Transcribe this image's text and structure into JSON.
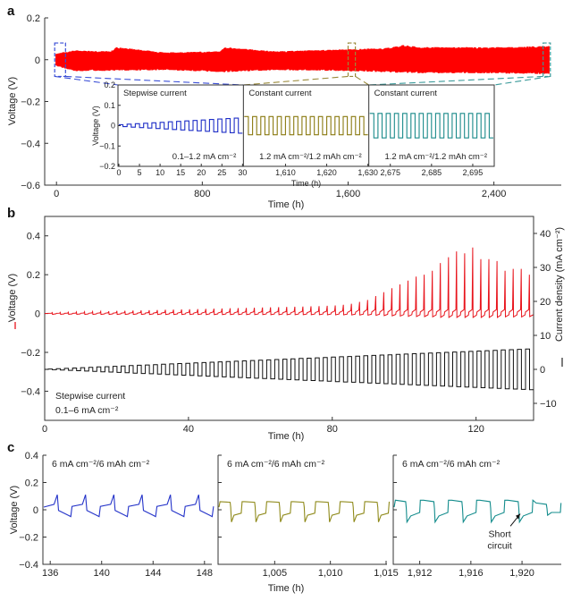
{
  "figure": {
    "panel_labels": [
      "a",
      "b",
      "c"
    ]
  },
  "chart_data": [
    {
      "id": "a",
      "type": "line",
      "panel_label": "a",
      "title": "",
      "xlabel": "Time (h)",
      "ylabel": "Voltage (V)",
      "xlim": [
        -50,
        2750
      ],
      "ylim": [
        -0.6,
        0.2
      ],
      "xticks": [
        0,
        800,
        1600,
        2400
      ],
      "xtick_labels": [
        "0",
        "800",
        "1,600",
        "2,400"
      ],
      "yticks": [
        0.2,
        0,
        -0.2,
        -0.4,
        -0.6
      ],
      "ytick_labels": [
        "0.2",
        "0",
        "−0.2",
        "−0.4",
        "−0.6"
      ],
      "series": [
        {
          "name": "Voltage",
          "color": "#ff0000",
          "envelope_upper": [
            [
              0,
              0.03
            ],
            [
              100,
              0.045
            ],
            [
              300,
              0.04
            ],
            [
              330,
              0.06
            ],
            [
              600,
              0.035
            ],
            [
              900,
              0.04
            ],
            [
              920,
              0.06
            ],
            [
              1200,
              0.04
            ],
            [
              1600,
              0.05
            ],
            [
              1800,
              0.055
            ],
            [
              1900,
              0.07
            ],
            [
              2000,
              0.06
            ],
            [
              2400,
              0.06
            ],
            [
              2700,
              0.065
            ]
          ],
          "envelope_lower": [
            [
              0,
              -0.03
            ],
            [
              100,
              -0.055
            ],
            [
              600,
              -0.05
            ],
            [
              920,
              -0.06
            ],
            [
              1200,
              -0.05
            ],
            [
              1600,
              -0.055
            ],
            [
              2000,
              -0.065
            ],
            [
              2400,
              -0.065
            ],
            [
              2700,
              -0.07
            ]
          ]
        }
      ],
      "zoom_boxes": [
        {
          "x_range": [
            0,
            30
          ],
          "color": "#3b4fd6"
        },
        {
          "x_range": [
            1600,
            1630
          ],
          "color": "#9a8a3a"
        },
        {
          "x_range": [
            2670,
            2700
          ],
          "color": "#3a9a9a"
        }
      ],
      "inset": {
        "ylabel": "Voltage (V)",
        "xlabel": "Time (h)",
        "ylim": [
          -0.2,
          0.2
        ],
        "yticks": [
          0.2,
          0.1,
          0,
          -0.1,
          -0.2
        ],
        "ytick_labels": [
          "0.2",
          "0.1",
          "0",
          "−0.1",
          "−0.2"
        ],
        "sub_panels": [
          {
            "title": "Stepwise current",
            "note": "0.1–1.2 mA cm⁻²",
            "color": "#1f2fc7",
            "xlim": [
              0,
              30
            ],
            "xticks": [
              0,
              5,
              10,
              15,
              20,
              25,
              30
            ],
            "xtick_labels": [
              "0",
              "5",
              "10",
              "15",
              "20",
              "25",
              "30"
            ],
            "amplitude_start": 0.005,
            "amplitude_end": 0.037,
            "cycles": 15
          },
          {
            "title": "Constant current",
            "note": "1.2 mA cm⁻²/1.2 mAh cm⁻²",
            "color": "#8a7a10",
            "xlim": [
              1600,
              1630
            ],
            "xticks": [
              1610,
              1620,
              1630
            ],
            "xtick_labels": [
              "1,610",
              "1,620",
              "1,630"
            ],
            "amplitude_start": 0.045,
            "amplitude_end": 0.045,
            "cycles": 15
          },
          {
            "title": "Constant current",
            "note": "1.2 mA cm⁻²/1.2 mAh cm⁻²",
            "color": "#1a8a8a",
            "xlim": [
              2670,
              2700
            ],
            "xticks": [
              2675,
              2685,
              2695
            ],
            "xtick_labels": [
              "2,675",
              "2,685",
              "2,695"
            ],
            "amplitude_start": 0.06,
            "amplitude_end": 0.06,
            "cycles": 15
          }
        ]
      }
    },
    {
      "id": "b",
      "type": "line",
      "panel_label": "b",
      "title": "",
      "xlabel": "Time (h)",
      "ylabel": "Voltage (V)",
      "y2label": "Current density (mA cm⁻²)",
      "xlim": [
        0,
        136
      ],
      "ylim": [
        -0.55,
        0.5
      ],
      "y2lim": [
        -15,
        45
      ],
      "xticks": [
        0,
        40,
        80,
        120
      ],
      "xtick_labels": [
        "0",
        "40",
        "80",
        "120"
      ],
      "yticks": [
        0.4,
        0.2,
        0,
        -0.2,
        -0.4
      ],
      "ytick_labels": [
        "0.4",
        "0.2",
        "0",
        "−0.2",
        "−0.4"
      ],
      "y2ticks": [
        40,
        30,
        20,
        10,
        0,
        -10
      ],
      "y2tick_labels": [
        "40",
        "30",
        "20",
        "10",
        "0",
        "−10"
      ],
      "annotation": [
        "Stepwise current",
        "0.1–6 mA cm⁻²"
      ],
      "series": [
        {
          "name": "Voltage",
          "axis": "left",
          "color": "#e8141c",
          "cycles": 60,
          "peak_values": [
            0.005,
            0.006,
            0.007,
            0.008,
            0.009,
            0.01,
            0.011,
            0.012,
            0.013,
            0.014,
            0.015,
            0.016,
            0.017,
            0.018,
            0.019,
            0.02,
            0.021,
            0.022,
            0.023,
            0.024,
            0.025,
            0.026,
            0.027,
            0.028,
            0.029,
            0.03,
            0.031,
            0.032,
            0.033,
            0.034,
            0.035,
            0.036,
            0.037,
            0.038,
            0.04,
            0.042,
            0.045,
            0.05,
            0.06,
            0.07,
            0.09,
            0.11,
            0.13,
            0.15,
            0.17,
            0.19,
            0.2,
            0.22,
            0.26,
            0.29,
            0.32,
            0.31,
            0.34,
            0.28,
            0.28,
            0.27,
            0.22,
            0.23,
            0.23,
            0.2
          ]
        },
        {
          "name": "Current density",
          "axis": "right",
          "color": "#111111",
          "cycles": 60,
          "amplitude_start": 0.1,
          "amplitude_end": 6
        }
      ]
    },
    {
      "id": "c",
      "type": "line",
      "panel_label": "c",
      "title": "",
      "xlabel": "Time (h)",
      "ylabel": "Voltage (V)",
      "ylim": [
        -0.4,
        0.4
      ],
      "yticks": [
        0.4,
        0.2,
        0,
        -0.2,
        -0.4
      ],
      "ytick_labels": [
        "0.4",
        "0.2",
        "0",
        "−0.2",
        "−0.4"
      ],
      "sub_panels": [
        {
          "note": "6 mA cm⁻²/6 mAh cm⁻²",
          "color": "#2433c9",
          "xlim": [
            135.5,
            148.5
          ],
          "xticks": [
            136,
            140,
            144,
            148
          ],
          "xtick_labels": [
            "136",
            "140",
            "144",
            "148"
          ],
          "shape": "spike"
        },
        {
          "note": "6 mA cm⁻²/6 mAh cm⁻²",
          "color": "#8f8a1a",
          "xlim": [
            1000,
            1015
          ],
          "xticks": [
            1005,
            1010,
            1015
          ],
          "xtick_labels": [
            "1,005",
            "1,010",
            "1,015"
          ],
          "shape": "plateau"
        },
        {
          "note": "6 mA cm⁻²/6 mAh cm⁻²",
          "color": "#138c8c",
          "xlim": [
            1910,
            1923
          ],
          "xticks": [
            1912,
            1916,
            1920
          ],
          "xtick_labels": [
            "1,912",
            "1,916",
            "1,920"
          ],
          "shape": "short",
          "annotation": [
            "Short",
            "circuit"
          ],
          "annotation_x": 1920
        }
      ]
    }
  ]
}
